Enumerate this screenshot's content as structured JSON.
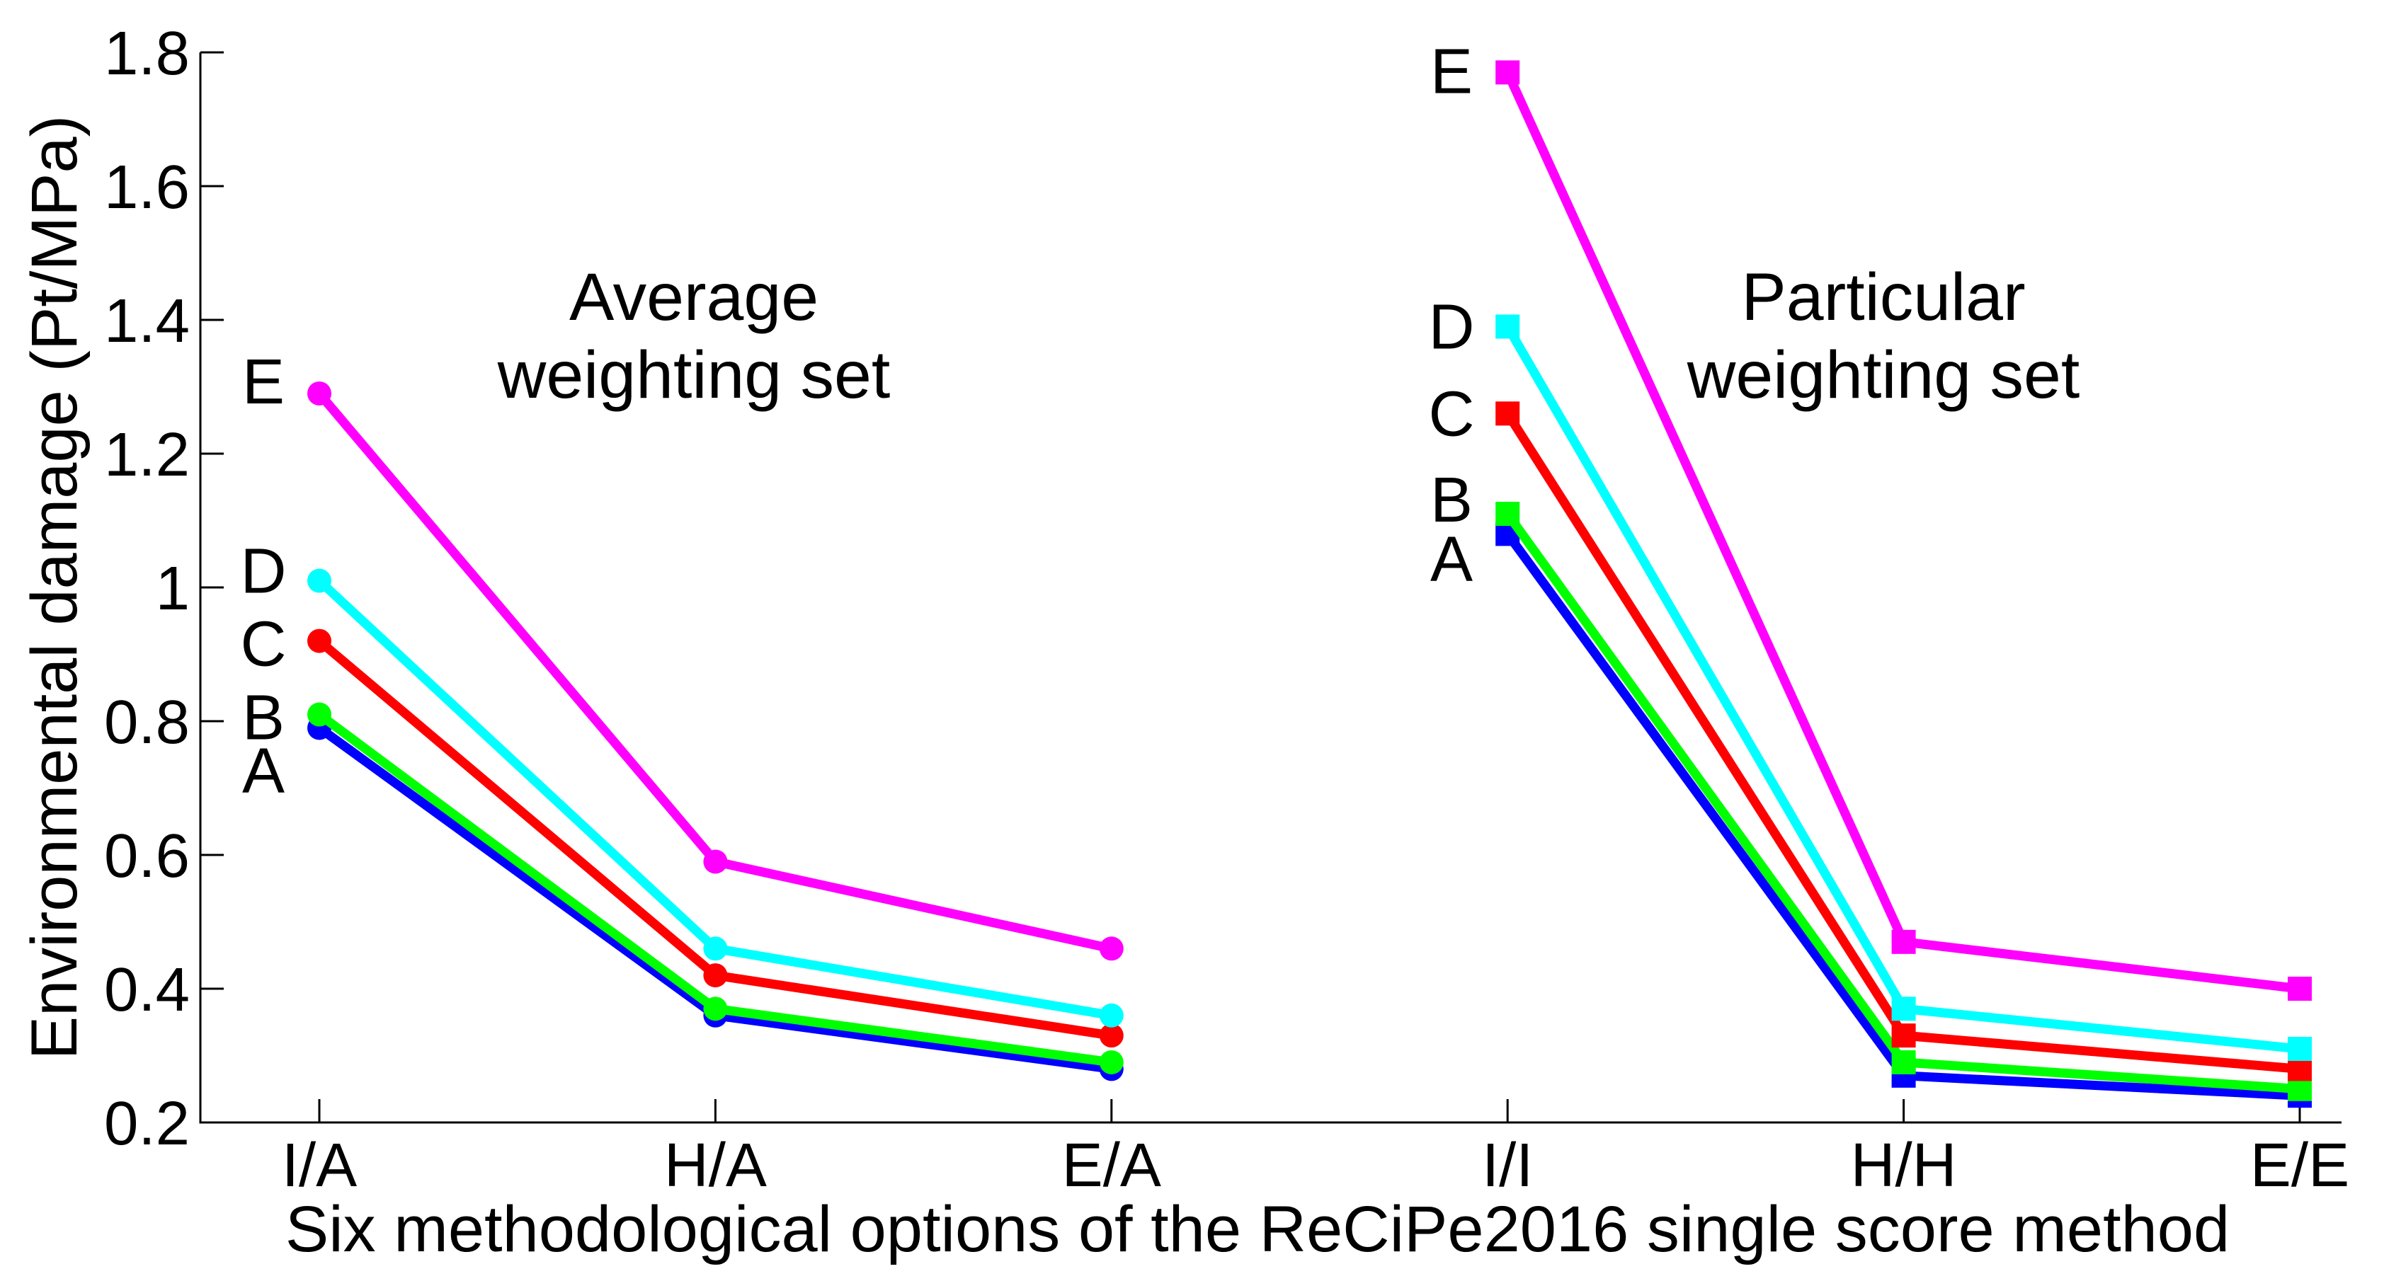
{
  "chart_data": {
    "type": "line",
    "title": "",
    "xlabel": "Six methodological options of the ReCiPe2016 single score method",
    "ylabel": "Environmental damage (Pt/MPa)",
    "categories": [
      "I/A",
      "H/A",
      "E/A",
      "I/I",
      "H/H",
      "E/E"
    ],
    "ylim": [
      0.2,
      1.8
    ],
    "ytick_values": [
      0.2,
      0.4,
      0.6,
      0.8,
      1.0,
      1.2,
      1.4,
      1.6,
      1.8
    ],
    "ytick_labels": [
      "0.2",
      "0.4",
      "0.6",
      "0.8",
      "1",
      "1.2",
      "1.4",
      "1.6",
      "1.8"
    ],
    "grid": false,
    "legend_position": "inline-letters-left-of-first-point-of-each-group",
    "groups": [
      {
        "title_line1": "Average",
        "title_line2": "weighting set",
        "category_indices": [
          0,
          1,
          2
        ],
        "marker": "circle"
      },
      {
        "title_line1": "Particular",
        "title_line2": "weighting set",
        "category_indices": [
          3,
          4,
          5
        ],
        "marker": "square"
      }
    ],
    "series": [
      {
        "name": "A",
        "color": "#0000ff",
        "values": [
          0.79,
          0.36,
          0.28,
          1.08,
          0.27,
          0.24
        ]
      },
      {
        "name": "B",
        "color": "#00ff00",
        "values": [
          0.81,
          0.37,
          0.29,
          1.11,
          0.29,
          0.25
        ]
      },
      {
        "name": "C",
        "color": "#ff0000",
        "values": [
          0.92,
          0.42,
          0.33,
          1.26,
          0.33,
          0.28
        ]
      },
      {
        "name": "D",
        "color": "#00ffff",
        "values": [
          1.01,
          0.46,
          0.36,
          1.39,
          0.37,
          0.31
        ]
      },
      {
        "name": "E",
        "color": "#ff00ff",
        "values": [
          1.29,
          0.59,
          0.46,
          1.77,
          0.47,
          0.4
        ]
      }
    ]
  }
}
